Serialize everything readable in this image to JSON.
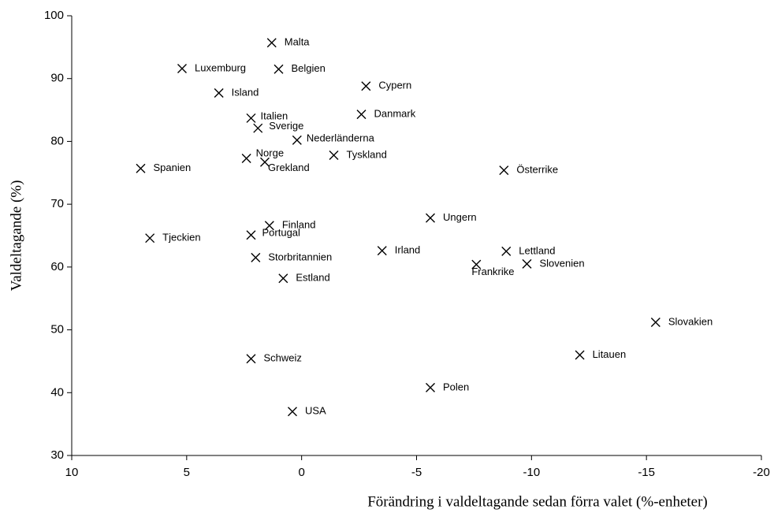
{
  "chart_data": {
    "type": "scatter",
    "xlabel": "Förändring i valdeltagande sedan förra valet (%-enheter)",
    "ylabel": "Valdeltagande (%)",
    "xlim": [
      10,
      -20
    ],
    "ylim": [
      30,
      100
    ],
    "xticks": [
      10,
      5,
      0,
      -5,
      -10,
      -15,
      -20
    ],
    "yticks": [
      30,
      40,
      50,
      60,
      70,
      80,
      90,
      100
    ],
    "color": "#000000",
    "labels": [
      "Malta",
      "Luxemburg",
      "Belgien",
      "Island",
      "Cypern",
      "Danmark",
      "Italien",
      "Sverige",
      "Nederländerna",
      "Norge",
      "Grekland",
      "Tyskland",
      "Spanien",
      "Österrike",
      "Ungern",
      "Finland",
      "Tjeckien",
      "Portugal",
      "Irland",
      "Lettland",
      "Storbritannien",
      "Frankrike",
      "Slovenien",
      "Estland",
      "Slovakien",
      "Litauen",
      "Schweiz",
      "Polen",
      "USA"
    ],
    "x": [
      1.3,
      5.2,
      1.0,
      3.6,
      -2.8,
      -2.6,
      2.2,
      1.9,
      0.2,
      2.4,
      1.6,
      -1.4,
      7.0,
      -8.8,
      -5.6,
      1.4,
      6.6,
      2.2,
      -3.5,
      -8.9,
      2.0,
      -7.6,
      -9.8,
      0.8,
      -15.4,
      -12.1,
      2.2,
      -5.6,
      0.4
    ],
    "y": [
      95.7,
      91.6,
      91.5,
      87.7,
      88.8,
      84.3,
      83.7,
      82.1,
      80.2,
      77.3,
      76.7,
      77.8,
      75.7,
      75.4,
      67.8,
      66.6,
      64.6,
      65.1,
      62.6,
      62.5,
      61.5,
      60.4,
      60.5,
      58.2,
      51.2,
      46.0,
      45.4,
      40.8,
      37.0
    ]
  }
}
